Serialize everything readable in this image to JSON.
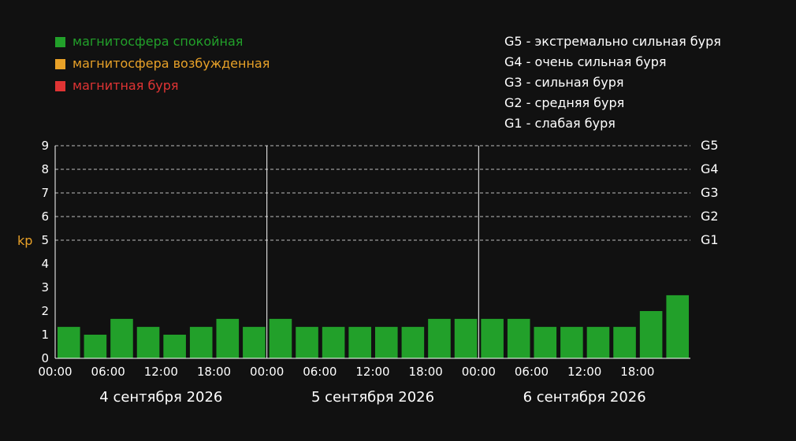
{
  "legend": {
    "items": [
      {
        "label": "магнитосфера спокойная",
        "color": "#22a02a"
      },
      {
        "label": "магнитосфера возбужденная",
        "color": "#e8a128"
      },
      {
        "label": "магнитная буря",
        "color": "#e03434"
      }
    ],
    "g_scale": [
      "G5 - экстремально сильная буря",
      "G4 - очень сильная буря",
      "G3 - сильная буря",
      "G2 - средняя буря",
      "G1 - слабая буря"
    ]
  },
  "chart_data": {
    "type": "bar",
    "ylabel": "kp",
    "ylim": [
      0,
      9
    ],
    "yticks": [
      0,
      1,
      2,
      3,
      4,
      5,
      6,
      7,
      8,
      9
    ],
    "grid": "dashed horizontal lines at 5-9",
    "storm_levels": [
      {
        "label": "G1",
        "value": 5
      },
      {
        "label": "G2",
        "value": 6
      },
      {
        "label": "G3",
        "value": 7
      },
      {
        "label": "G4",
        "value": 8
      },
      {
        "label": "G5",
        "value": 9
      }
    ],
    "days": [
      {
        "label": "4 сентября 2026",
        "ticks": [
          "00:00",
          "06:00",
          "12:00",
          "18:00"
        ],
        "values": [
          1.33,
          1.0,
          1.67,
          1.33,
          1.0,
          1.33,
          1.67,
          1.33
        ]
      },
      {
        "label": "5 сентября 2026",
        "ticks": [
          "00:00",
          "06:00",
          "12:00",
          "18:00"
        ],
        "values": [
          1.67,
          1.33,
          1.33,
          1.33,
          1.33,
          1.33,
          1.67,
          1.67
        ]
      },
      {
        "label": "6 сентября 2026",
        "ticks": [
          "00:00",
          "06:00",
          "12:00",
          "18:00"
        ],
        "values": [
          1.67,
          1.67,
          1.33,
          1.33,
          1.33,
          1.33,
          2.0,
          2.67
        ]
      }
    ],
    "bar_color": "#22a02a",
    "ylabel_color": "#e8a128"
  }
}
